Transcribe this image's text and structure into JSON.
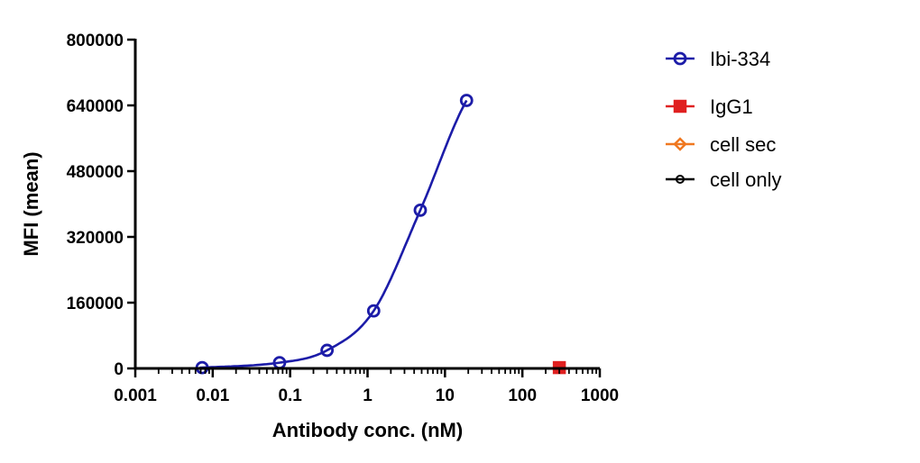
{
  "chart_data": {
    "type": "scatter",
    "xscale": "log",
    "xlabel": "Antibody conc. (nM)",
    "ylabel": "MFI (mean)",
    "xlim": [
      0.001,
      1000
    ],
    "ylim": [
      0,
      800000
    ],
    "x_ticks": [
      "0.001",
      "0.01",
      "0.1",
      "1",
      "10",
      "100",
      "1000"
    ],
    "y_ticks": [
      "0",
      "160000",
      "320000",
      "480000",
      "640000",
      "800000"
    ],
    "grid": false,
    "legend_position": "right",
    "series": [
      {
        "name": "Ibi-334",
        "color": "#1c1ca8",
        "marker": "circle",
        "fit_curve": true,
        "x": [
          0.0073,
          0.073,
          0.3,
          1.2,
          4.8,
          19
        ],
        "y": [
          2000,
          14000,
          44000,
          140000,
          385000,
          652000
        ]
      },
      {
        "name": "IgG1",
        "color": "#e02020",
        "marker": "square",
        "fit_curve": false,
        "x": [
          300
        ],
        "y": [
          2000
        ]
      },
      {
        "name": "cell sec",
        "color": "#f07820",
        "marker": "diamond",
        "fit_curve": false,
        "x": [],
        "y": []
      },
      {
        "name": "cell only",
        "color": "#000000",
        "marker": "circle-small",
        "fit_curve": false,
        "x": [],
        "y": []
      }
    ]
  }
}
